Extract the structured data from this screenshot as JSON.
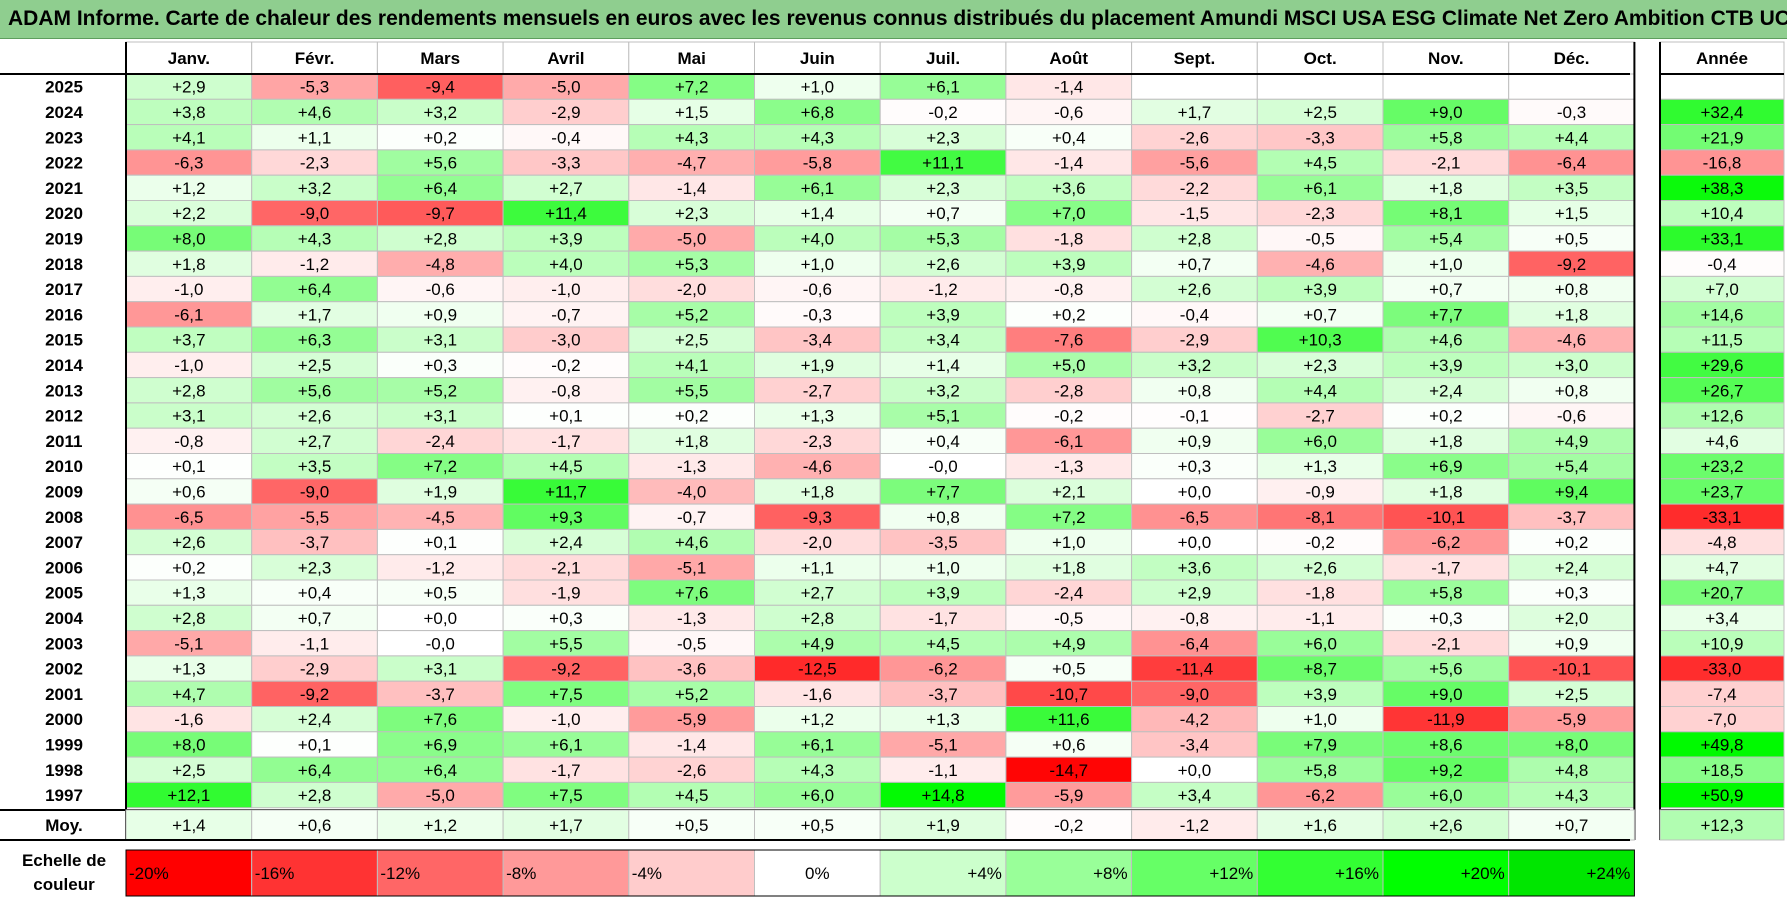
{
  "title": "ADAM Informe. Carte de chaleur des rendements mensuels en euros avec les revenus connus distribués du placement Amundi MSCI USA ESG Climate Net Zero Ambition CTB UC",
  "chart_data": {
    "type": "heatmap",
    "months": [
      "Janv.",
      "Févr.",
      "Mars",
      "Avril",
      "Mai",
      "Juin",
      "Juil.",
      "Août",
      "Sept.",
      "Oct.",
      "Nov.",
      "Déc."
    ],
    "year_column_label": "Année",
    "rows": [
      {
        "year": "2025",
        "values": [
          "+2,9",
          "-5,3",
          "-9,4",
          "-5,0",
          "+7,2",
          "+1,0",
          "+6,1",
          "-1,4",
          "",
          "",
          "",
          ""
        ],
        "annual": ""
      },
      {
        "year": "2024",
        "values": [
          "+3,8",
          "+4,6",
          "+3,2",
          "-2,9",
          "+1,5",
          "+6,8",
          "-0,2",
          "-0,6",
          "+1,7",
          "+2,5",
          "+9,0",
          "-0,3"
        ],
        "annual": "+32,4"
      },
      {
        "year": "2023",
        "values": [
          "+4,1",
          "+1,1",
          "+0,2",
          "-0,4",
          "+4,3",
          "+4,3",
          "+2,3",
          "+0,4",
          "-2,6",
          "-3,3",
          "+5,8",
          "+4,4"
        ],
        "annual": "+21,9"
      },
      {
        "year": "2022",
        "values": [
          "-6,3",
          "-2,3",
          "+5,6",
          "-3,3",
          "-4,7",
          "-5,8",
          "+11,1",
          "-1,4",
          "-5,6",
          "+4,5",
          "-2,1",
          "-6,4"
        ],
        "annual": "-16,8"
      },
      {
        "year": "2021",
        "values": [
          "+1,2",
          "+3,2",
          "+6,4",
          "+2,7",
          "-1,4",
          "+6,1",
          "+2,3",
          "+3,6",
          "-2,2",
          "+6,1",
          "+1,8",
          "+3,5"
        ],
        "annual": "+38,3"
      },
      {
        "year": "2020",
        "values": [
          "+2,2",
          "-9,0",
          "-9,7",
          "+11,4",
          "+2,3",
          "+1,4",
          "+0,7",
          "+7,0",
          "-1,5",
          "-2,3",
          "+8,1",
          "+1,5"
        ],
        "annual": "+10,4"
      },
      {
        "year": "2019",
        "values": [
          "+8,0",
          "+4,3",
          "+2,8",
          "+3,9",
          "-5,0",
          "+4,0",
          "+5,3",
          "-1,8",
          "+2,8",
          "-0,5",
          "+5,4",
          "+0,5"
        ],
        "annual": "+33,1"
      },
      {
        "year": "2018",
        "values": [
          "+1,8",
          "-1,2",
          "-4,8",
          "+4,0",
          "+5,3",
          "+1,0",
          "+2,6",
          "+3,9",
          "+0,7",
          "-4,6",
          "+1,0",
          "-9,2"
        ],
        "annual": "-0,4"
      },
      {
        "year": "2017",
        "values": [
          "-1,0",
          "+6,4",
          "-0,6",
          "-1,0",
          "-2,0",
          "-0,6",
          "-1,2",
          "-0,8",
          "+2,6",
          "+3,9",
          "+0,7",
          "+0,8"
        ],
        "annual": "+7,0"
      },
      {
        "year": "2016",
        "values": [
          "-6,1",
          "+1,7",
          "+0,9",
          "-0,7",
          "+5,2",
          "-0,3",
          "+3,9",
          "+0,2",
          "-0,4",
          "+0,7",
          "+7,7",
          "+1,8"
        ],
        "annual": "+14,6"
      },
      {
        "year": "2015",
        "values": [
          "+3,7",
          "+6,3",
          "+3,1",
          "-3,0",
          "+2,5",
          "-3,4",
          "+3,4",
          "-7,6",
          "-2,9",
          "+10,3",
          "+4,6",
          "-4,6"
        ],
        "annual": "+11,5"
      },
      {
        "year": "2014",
        "values": [
          "-1,0",
          "+2,5",
          "+0,3",
          "-0,2",
          "+4,1",
          "+1,9",
          "+1,4",
          "+5,0",
          "+3,2",
          "+2,3",
          "+3,9",
          "+3,0"
        ],
        "annual": "+29,6"
      },
      {
        "year": "2013",
        "values": [
          "+2,8",
          "+5,6",
          "+5,2",
          "-0,8",
          "+5,5",
          "-2,7",
          "+3,2",
          "-2,8",
          "+0,8",
          "+4,4",
          "+2,4",
          "+0,8"
        ],
        "annual": "+26,7"
      },
      {
        "year": "2012",
        "values": [
          "+3,1",
          "+2,6",
          "+3,1",
          "+0,1",
          "+0,2",
          "+1,3",
          "+5,1",
          "-0,2",
          "-0,1",
          "-2,7",
          "+0,2",
          "-0,6"
        ],
        "annual": "+12,6"
      },
      {
        "year": "2011",
        "values": [
          "-0,8",
          "+2,7",
          "-2,4",
          "-1,7",
          "+1,8",
          "-2,3",
          "+0,4",
          "-6,1",
          "+0,9",
          "+6,0",
          "+1,8",
          "+4,9"
        ],
        "annual": "+4,6"
      },
      {
        "year": "2010",
        "values": [
          "+0,1",
          "+3,5",
          "+7,2",
          "+4,5",
          "-1,3",
          "-4,6",
          "-0,0",
          "-1,3",
          "+0,3",
          "+1,3",
          "+6,9",
          "+5,4"
        ],
        "annual": "+23,2"
      },
      {
        "year": "2009",
        "values": [
          "+0,6",
          "-9,0",
          "+1,9",
          "+11,7",
          "-4,0",
          "+1,8",
          "+7,7",
          "+2,1",
          "+0,0",
          "-0,9",
          "+1,8",
          "+9,4"
        ],
        "annual": "+23,7"
      },
      {
        "year": "2008",
        "values": [
          "-6,5",
          "-5,5",
          "-4,5",
          "+9,3",
          "-0,7",
          "-9,3",
          "+0,8",
          "+7,2",
          "-6,5",
          "-8,1",
          "-10,1",
          "-3,7"
        ],
        "annual": "-33,1"
      },
      {
        "year": "2007",
        "values": [
          "+2,6",
          "-3,7",
          "+0,1",
          "+2,4",
          "+4,6",
          "-2,0",
          "-3,5",
          "+1,0",
          "+0,0",
          "-0,2",
          "-6,2",
          "+0,2"
        ],
        "annual": "-4,8"
      },
      {
        "year": "2006",
        "values": [
          "+0,2",
          "+2,3",
          "-1,2",
          "-2,1",
          "-5,1",
          "+1,1",
          "+1,0",
          "+1,8",
          "+3,6",
          "+2,6",
          "-1,7",
          "+2,4"
        ],
        "annual": "+4,7"
      },
      {
        "year": "2005",
        "values": [
          "+1,3",
          "+0,4",
          "+0,5",
          "-1,9",
          "+7,6",
          "+2,7",
          "+3,9",
          "-2,4",
          "+2,9",
          "-1,8",
          "+5,8",
          "+0,3"
        ],
        "annual": "+20,7"
      },
      {
        "year": "2004",
        "values": [
          "+2,8",
          "+0,7",
          "+0,0",
          "+0,3",
          "-1,3",
          "+2,8",
          "-1,7",
          "-0,5",
          "-0,8",
          "-1,1",
          "+0,3",
          "+2,0"
        ],
        "annual": "+3,4"
      },
      {
        "year": "2003",
        "values": [
          "-5,1",
          "-1,1",
          "-0,0",
          "+5,5",
          "-0,5",
          "+4,9",
          "+4,5",
          "+4,9",
          "-6,4",
          "+6,0",
          "-2,1",
          "+0,9"
        ],
        "annual": "+10,9"
      },
      {
        "year": "2002",
        "values": [
          "+1,3",
          "-2,9",
          "+3,1",
          "-9,2",
          "-3,6",
          "-12,5",
          "-6,2",
          "+0,5",
          "-11,4",
          "+8,7",
          "+5,6",
          "-10,1"
        ],
        "annual": "-33,0"
      },
      {
        "year": "2001",
        "values": [
          "+4,7",
          "-9,2",
          "-3,7",
          "+7,5",
          "+5,2",
          "-1,6",
          "-3,7",
          "-10,7",
          "-9,0",
          "+3,9",
          "+9,0",
          "+2,5"
        ],
        "annual": "-7,4"
      },
      {
        "year": "2000",
        "values": [
          "-1,6",
          "+2,4",
          "+7,6",
          "-1,0",
          "-5,9",
          "+1,2",
          "+1,3",
          "+11,6",
          "-4,2",
          "+1,0",
          "-11,9",
          "-5,9"
        ],
        "annual": "-7,0"
      },
      {
        "year": "1999",
        "values": [
          "+8,0",
          "+0,1",
          "+6,9",
          "+6,1",
          "-1,4",
          "+6,1",
          "-5,1",
          "+0,6",
          "-3,4",
          "+7,9",
          "+8,6",
          "+8,0"
        ],
        "annual": "+49,8"
      },
      {
        "year": "1998",
        "values": [
          "+2,5",
          "+6,4",
          "+6,4",
          "-1,7",
          "-2,6",
          "+4,3",
          "-1,1",
          "-14,7",
          "+0,0",
          "+5,8",
          "+9,2",
          "+4,8"
        ],
        "annual": "+18,5"
      },
      {
        "year": "1997",
        "values": [
          "+12,1",
          "+2,8",
          "-5,0",
          "+7,5",
          "+4,5",
          "+6,0",
          "+14,8",
          "-5,9",
          "+3,4",
          "-6,2",
          "+6,0",
          "+4,3"
        ],
        "annual": "+50,9"
      }
    ],
    "average": {
      "label": "Moy.",
      "values": [
        "+1,4",
        "+0,6",
        "+1,2",
        "+1,7",
        "+0,5",
        "+0,5",
        "+1,9",
        "-0,2",
        "-1,2",
        "+1,6",
        "+2,6",
        "+0,7"
      ],
      "annual": "+12,3"
    },
    "scale": {
      "label_line1": "Echelle de",
      "label_line2": "couleur",
      "items": [
        {
          "label": "-20%",
          "value": -20,
          "color": "#ff0000"
        },
        {
          "label": "-16%",
          "value": -16,
          "color": "#ff3333"
        },
        {
          "label": "-12%",
          "value": -12,
          "color": "#ff6666"
        },
        {
          "label": "-8%",
          "value": -8,
          "color": "#ff9999"
        },
        {
          "label": "-4%",
          "value": -4,
          "color": "#ffcccc"
        },
        {
          "label": "0%",
          "value": 0,
          "color": "#ffffff"
        },
        {
          "label": "+4%",
          "value": 4,
          "color": "#ccffcc"
        },
        {
          "label": "+8%",
          "value": 8,
          "color": "#99ff99"
        },
        {
          "label": "+12%",
          "value": 12,
          "color": "#66ff66"
        },
        {
          "label": "+16%",
          "value": 16,
          "color": "#33ff33"
        },
        {
          "label": "+20%",
          "value": 20,
          "color": "#00ff00"
        },
        {
          "label": "+24%",
          "value": 24,
          "color": "#00e600"
        }
      ]
    },
    "colors": {
      "title_bar": "#8fce8f",
      "grid": "#bfbfbf"
    }
  }
}
